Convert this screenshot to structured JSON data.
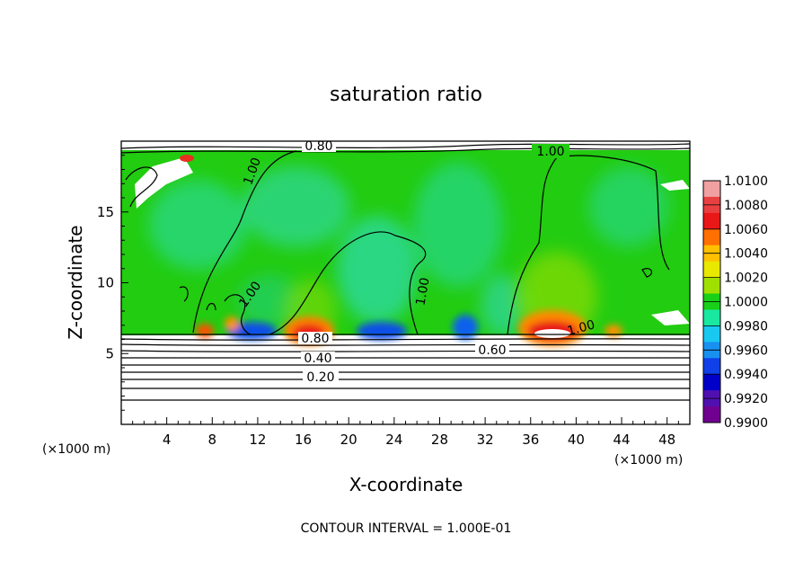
{
  "chart_data": {
    "type": "heatmap",
    "title": "saturation ratio",
    "xlabel": "X-coordinate",
    "ylabel": "Z-coordinate",
    "x_unit": "(×1000 m)",
    "z_unit": "(×1000 m)",
    "xlim": [
      0,
      50
    ],
    "ylim": [
      0,
      20
    ],
    "x_ticks": [
      "4",
      "8",
      "12",
      "16",
      "20",
      "24",
      "28",
      "32",
      "36",
      "40",
      "44",
      "48"
    ],
    "y_ticks": [
      "5",
      "10",
      "15"
    ],
    "colorbar": {
      "min": 0.99,
      "max": 1.01,
      "labels": [
        "1.0100",
        "1.0080",
        "1.0060",
        "1.0040",
        "1.0020",
        "1.0000",
        "0.9980",
        "0.9960",
        "0.9940",
        "0.9920",
        "0.9900"
      ],
      "colors": [
        "#f0a0a0",
        "#e84040",
        "#e81818",
        "#ff7000",
        "#ffc000",
        "#e8e800",
        "#a0e000",
        "#18d018",
        "#18e8a0",
        "#18c8f0",
        "#1890f0",
        "#1040e8",
        "#0000c8",
        "#5010b0",
        "#700090"
      ]
    },
    "contour_labels": [
      "0.80",
      "1.00",
      "1.00",
      "1.00",
      "1.00",
      "1.00",
      "0.80",
      "0.60",
      "0.40",
      "0.20"
    ],
    "contour_interval": "CONTOUR INTERVAL = 1.000E-01",
    "grid": false
  }
}
